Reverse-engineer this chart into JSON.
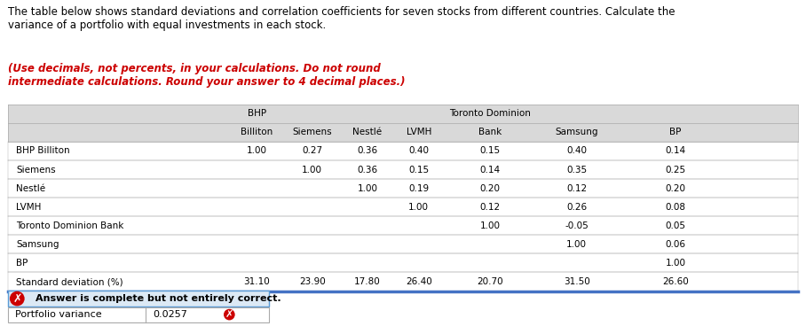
{
  "title_normal": "The table below shows standard deviations and correlation coefficients for seven stocks from different countries. Calculate the\nvariance of a portfolio with equal investments in each stock. ",
  "title_bold_red": "(Use decimals, not percents, in your calculations. Do not round\nintermediate calculations. Round your answer to 4 decimal places.)",
  "col_header_row2": [
    "Billiton",
    "Siemens",
    "Nestlé",
    "LVMH",
    "Bank",
    "Samsung",
    "BP"
  ],
  "row_labels": [
    "BHP Billiton",
    "Siemens",
    "Nestlé",
    "LVMH",
    "Toronto Dominion Bank",
    "Samsung",
    "BP",
    "Standard deviation (%)"
  ],
  "table_data": [
    [
      "1.00",
      "0.27",
      "0.36",
      "0.40",
      "0.15",
      "0.40",
      "0.14"
    ],
    [
      "",
      "1.00",
      "0.36",
      "0.15",
      "0.14",
      "0.35",
      "0.25"
    ],
    [
      "",
      "",
      "1.00",
      "0.19",
      "0.20",
      "0.12",
      "0.20"
    ],
    [
      "",
      "",
      "",
      "1.00",
      "0.12",
      "0.26",
      "0.08"
    ],
    [
      "",
      "",
      "",
      "",
      "1.00",
      "-0.05",
      "0.05"
    ],
    [
      "",
      "",
      "",
      "",
      "",
      "1.00",
      "0.06"
    ],
    [
      "",
      "",
      "",
      "",
      "",
      "",
      "1.00"
    ],
    [
      "31.10",
      "23.90",
      "17.80",
      "26.40",
      "20.70",
      "31.50",
      "26.60"
    ]
  ],
  "answer_label": "Answer is complete but not entirely correct.",
  "portfolio_label": "Portfolio variance",
  "portfolio_value": "0.0257",
  "header_bg": "#d9d9d9",
  "table_border": "#aaaaaa",
  "blue_line_color": "#4472c4",
  "answer_box_bg": "#dce9f5",
  "answer_box_border": "#5b9bd5",
  "answer_label_color": "#cc0000",
  "normal_text_color": "#000000",
  "data_col_centers": [
    0.315,
    0.385,
    0.455,
    0.52,
    0.61,
    0.72,
    0.845
  ],
  "font_size_title": 8.5,
  "font_size_table": 7.5,
  "font_size_answer": 8.5
}
